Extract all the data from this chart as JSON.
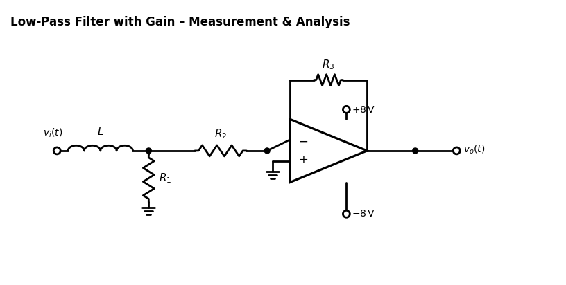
{
  "title": "Low-Pass Filter with Gain – Measurement & Analysis",
  "title_fontsize": 12,
  "background_color": "#ffffff",
  "line_color": "#000000",
  "line_width": 2.0,
  "fig_width": 8.16,
  "fig_height": 4.12
}
